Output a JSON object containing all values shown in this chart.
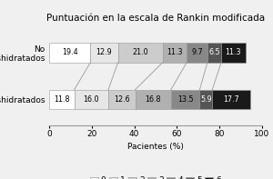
{
  "title": "Puntuación en la escala de Rankin modificada",
  "xlabel": "Pacientes (%)",
  "categories": [
    "No\ndeshidratados",
    "Deshidratados"
  ],
  "segments": [
    0,
    1,
    2,
    3,
    4,
    5,
    6
  ],
  "values": [
    [
      19.4,
      12.9,
      21.0,
      11.3,
      9.7,
      6.5,
      11.3
    ],
    [
      11.8,
      16.0,
      12.6,
      16.8,
      13.5,
      5.9,
      17.7
    ]
  ],
  "colors": [
    "#ffffff",
    "#e6e6e6",
    "#cccccc",
    "#b0b0b0",
    "#888888",
    "#555555",
    "#1a1a1a"
  ],
  "bar_height": 0.42,
  "xlim": [
    0,
    100
  ],
  "title_fontsize": 7.5,
  "label_fontsize": 5.8,
  "tick_fontsize": 6.5,
  "legend_fontsize": 6.5,
  "connecting_lines_color": "#999999",
  "bg_color": "#f0f0f0",
  "edge_color": "#999999"
}
